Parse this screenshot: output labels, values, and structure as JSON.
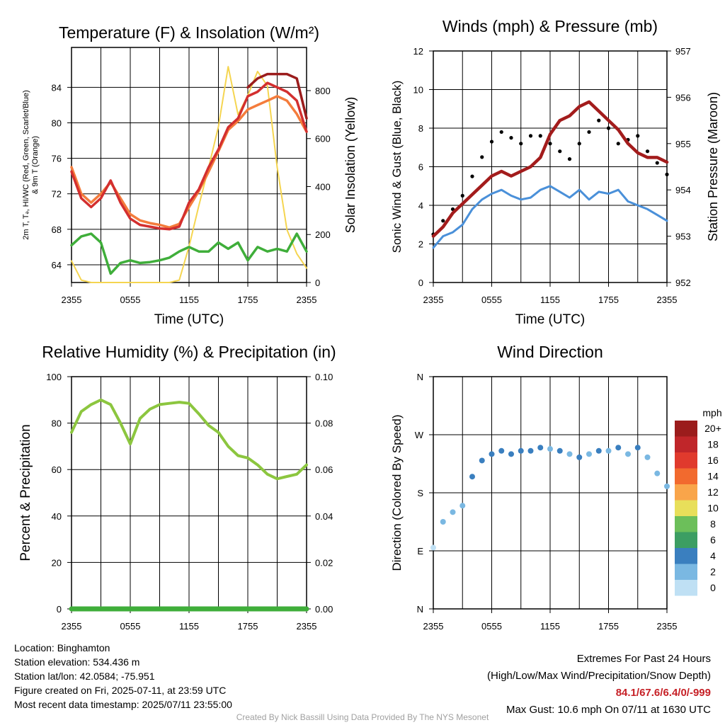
{
  "chart_data": [
    {
      "type": "line",
      "title": "Temperature (F) & Insolation (W/m²)",
      "xlabel": "Time (UTC)",
      "ylabel": "2m T, Tₔ, HI/WC (Red, Green, Scarlet/Blue) & 9m T (Orange)",
      "ylabel_lines": [
        "2m T, Tₔ, HI/WC (Red, Green, Scarlet/Blue)",
        "& 9m T (Orange)"
      ],
      "ylabel_right": "Solar Insolation (Yellow)",
      "x_ticks": [
        "2355",
        "0555",
        "1155",
        "1755",
        "2355"
      ],
      "y_ticks": [
        64,
        68,
        72,
        76,
        80,
        84
      ],
      "y_ticks_right": [
        0,
        200,
        400,
        600,
        800
      ],
      "ylim": [
        62,
        88.5
      ],
      "ylim_right": [
        0,
        980
      ],
      "x": [
        0,
        1,
        2,
        3,
        4,
        5,
        6,
        7,
        8,
        9,
        10,
        11,
        12,
        13,
        14,
        15,
        16,
        17,
        18,
        19,
        20,
        21,
        22,
        23,
        24
      ],
      "series": [
        {
          "name": "2m T",
          "color": "#d32f2f",
          "values": [
            74.5,
            71.5,
            70.5,
            71.5,
            73.5,
            71,
            69.2,
            68.5,
            68.3,
            68.1,
            68,
            68.3,
            71,
            72.5,
            75,
            77,
            79.5,
            80.5,
            83,
            83.5,
            84.5,
            84,
            83.5,
            82.5,
            79
          ]
        },
        {
          "name": "9m T",
          "color": "#f47c3c",
          "values": [
            75,
            72,
            71,
            72,
            73.3,
            71.5,
            69.7,
            69,
            68.7,
            68.5,
            68.2,
            68.6,
            70.5,
            72.3,
            74.5,
            76.8,
            79.2,
            80.2,
            81.5,
            82,
            82.5,
            83,
            82.5,
            81,
            79
          ]
        },
        {
          "name": "HI/WC",
          "color": "#9b1c1c",
          "values": [
            null,
            null,
            null,
            null,
            null,
            null,
            null,
            null,
            null,
            null,
            null,
            null,
            null,
            null,
            null,
            null,
            null,
            null,
            84,
            85,
            85.5,
            85.5,
            85.5,
            85,
            80.5
          ]
        },
        {
          "name": "Td",
          "color": "#3fae3a",
          "values": [
            66.2,
            67.2,
            67.5,
            66.5,
            63,
            64.2,
            64.5,
            64.2,
            64.3,
            64.5,
            64.8,
            65.5,
            66,
            65.5,
            65.5,
            66.5,
            65.8,
            66.5,
            64.5,
            66,
            65.5,
            65.8,
            65.5,
            67.5,
            65.5
          ]
        },
        {
          "name": "Solar Insolation",
          "color": "#f5d550",
          "axis": "right",
          "values": [
            90,
            10,
            0,
            0,
            0,
            0,
            0,
            0,
            0,
            0,
            0,
            10,
            150,
            320,
            480,
            650,
            900,
            700,
            780,
            880,
            820,
            480,
            220,
            120,
            60
          ]
        }
      ]
    },
    {
      "type": "scatter",
      "title": "Winds (mph) & Pressure (mb)",
      "xlabel": "Time (UTC)",
      "ylabel": "Sonic Wind & Gust (Blue, Black)",
      "ylabel_right": "Station Pressure (Maroon)",
      "x_ticks": [
        "2355",
        "0555",
        "1155",
        "1755",
        "2355"
      ],
      "y_ticks": [
        0,
        2,
        4,
        6,
        8,
        10,
        12
      ],
      "y_ticks_right": [
        952,
        953,
        954,
        955,
        956,
        957
      ],
      "ylim": [
        0,
        12
      ],
      "ylim_right": [
        952,
        957
      ],
      "x": [
        0,
        1,
        2,
        3,
        4,
        5,
        6,
        7,
        8,
        9,
        10,
        11,
        12,
        13,
        14,
        15,
        16,
        17,
        18,
        19,
        20,
        21,
        22,
        23,
        24
      ],
      "series": [
        {
          "name": "Sonic Wind",
          "color": "#4a90d9",
          "values": [
            1.8,
            2.4,
            2.6,
            3,
            3.8,
            4.3,
            4.6,
            4.8,
            4.5,
            4.3,
            4.4,
            4.8,
            5,
            4.7,
            4.4,
            4.8,
            4.3,
            4.7,
            4.6,
            4.8,
            4.2,
            4,
            3.8,
            3.5,
            3.2
          ]
        },
        {
          "name": "Gust",
          "color": "#000000",
          "values": [
            2.5,
            3.2,
            3.8,
            4.5,
            5.5,
            6.5,
            7.3,
            7.8,
            7.5,
            7.2,
            7.6,
            7.6,
            7.2,
            6.8,
            6.4,
            7.2,
            7.8,
            8.4,
            8,
            7.2,
            7.4,
            7.6,
            6.8,
            6.2,
            5.6
          ]
        },
        {
          "name": "Station Pressure",
          "color": "#a31c1c",
          "axis": "right",
          "values": [
            953,
            953.2,
            953.5,
            953.7,
            953.9,
            954.1,
            954.3,
            954.4,
            954.3,
            954.4,
            954.5,
            954.7,
            955.2,
            955.5,
            955.6,
            955.8,
            955.9,
            955.7,
            955.5,
            955.3,
            955,
            954.8,
            954.7,
            954.7,
            954.6
          ]
        }
      ]
    },
    {
      "type": "line",
      "title": "Relative Humidity (%) & Precipitation (in)",
      "xlabel": "",
      "ylabel": "Percent & Precipitation",
      "x_ticks": [
        "2355",
        "0555",
        "1155",
        "1755",
        "2355"
      ],
      "y_ticks": [
        0,
        20,
        40,
        60,
        80,
        100
      ],
      "y_ticks_right": [
        "0.00",
        "0.02",
        "0.04",
        "0.06",
        "0.08",
        "0.10"
      ],
      "ylim": [
        0,
        100
      ],
      "ylim_right": [
        0,
        0.1
      ],
      "x": [
        0,
        1,
        2,
        3,
        4,
        5,
        6,
        7,
        8,
        9,
        10,
        11,
        12,
        13,
        14,
        15,
        16,
        17,
        18,
        19,
        20,
        21,
        22,
        23,
        24
      ],
      "series": [
        {
          "name": "Relative Humidity",
          "color": "#8cc63f",
          "values": [
            76,
            85,
            88,
            90,
            88,
            80,
            71,
            82,
            86,
            88,
            88.5,
            89,
            88.5,
            84,
            79,
            76,
            70,
            66,
            65,
            62,
            58,
            56,
            57,
            58,
            62
          ]
        },
        {
          "name": "Precipitation",
          "color": "#3fae3a",
          "axis": "right",
          "values": [
            0,
            0,
            0,
            0,
            0,
            0,
            0,
            0,
            0,
            0,
            0,
            0,
            0,
            0,
            0,
            0,
            0,
            0,
            0,
            0,
            0,
            0,
            0,
            0,
            0
          ]
        }
      ]
    },
    {
      "type": "scatter",
      "title": "Wind Direction",
      "xlabel": "",
      "ylabel": "Direction (Colored By Speed)",
      "x_ticks": [
        "2355",
        "0555",
        "1155",
        "1755",
        "2355"
      ],
      "y_ticks": [
        "N",
        "E",
        "S",
        "W",
        "N"
      ],
      "ylim": [
        0,
        360
      ],
      "x": [
        0,
        1,
        2,
        3,
        4,
        5,
        6,
        7,
        8,
        9,
        10,
        11,
        12,
        13,
        14,
        15,
        16,
        17,
        18,
        19,
        20,
        21,
        22,
        23,
        24
      ],
      "values": [
        95,
        135,
        150,
        160,
        205,
        230,
        240,
        245,
        240,
        245,
        245,
        250,
        248,
        245,
        240,
        235,
        240,
        245,
        245,
        250,
        240,
        250,
        235,
        210,
        190
      ],
      "speed": [
        1,
        2,
        2,
        3,
        4,
        4,
        4,
        5,
        4,
        4,
        4,
        4,
        3,
        4,
        3,
        4,
        3,
        5,
        2,
        4,
        3,
        4,
        3,
        2,
        2
      ],
      "colorbar": {
        "title": "mph",
        "labels": [
          "20+",
          "18",
          "16",
          "14",
          "12",
          "10",
          "8",
          "6",
          "4",
          "2",
          "0"
        ],
        "colors": [
          "#9b1c1c",
          "#c0262a",
          "#e03a2d",
          "#f26a2e",
          "#f9a54a",
          "#e8df5a",
          "#6cbf5a",
          "#3c9e63",
          "#3a7fbf",
          "#7ab8e2",
          "#bfe0f4"
        ]
      }
    }
  ],
  "info": {
    "location": "Location: Binghamton",
    "elevation": "Station elevation: 534.436 m",
    "latlon": "Station lat/lon: 42.0584; -75.951",
    "created": "Figure created on Fri, 2025-07-11, at 23:59 UTC",
    "recent": "Most recent data timestamp: 2025/07/11 23:55:00",
    "extremes_title": "Extremes For Past 24 Hours",
    "extremes_sub": "(High/Low/Max Wind/Precipitation/Snow Depth)",
    "extremes_values": "84.1/67.6/6.4/0/-999",
    "max_gust": "Max Gust: 10.6 mph On 07/11 at 1630 UTC",
    "credit": "Created By Nick Bassill Using Data Provided By The NYS Mesonet"
  }
}
